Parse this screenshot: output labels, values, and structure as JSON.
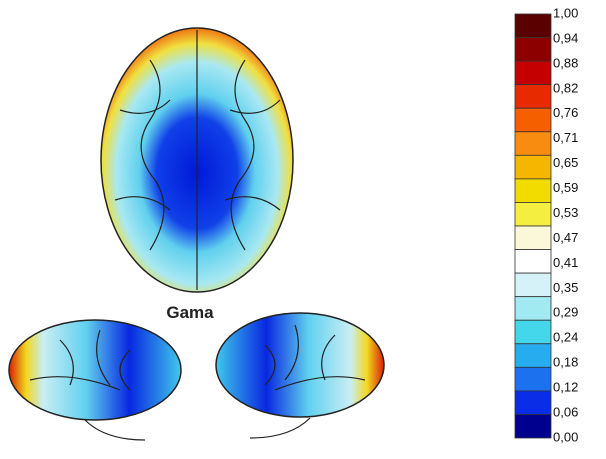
{
  "figure": {
    "label": "Gama"
  },
  "colorbar": {
    "labels": [
      "1,00",
      "0,94",
      "0,88",
      "0,82",
      "0,76",
      "0,71",
      "0,65",
      "0,59",
      "0,53",
      "0,47",
      "0,41",
      "0,35",
      "0,29",
      "0,24",
      "0,18",
      "0,12",
      "0,06",
      "0,00"
    ],
    "colors": [
      "#5a0000",
      "#8c0000",
      "#c40000",
      "#e82a00",
      "#f55f00",
      "#f88c10",
      "#f6b600",
      "#f2dc00",
      "#f4ee40",
      "#faf8d8",
      "#ffffff",
      "#d4f2f8",
      "#a2eaf2",
      "#44d6ea",
      "#28acf0",
      "#1c72ee",
      "#0a2ee8",
      "#00008e"
    ]
  }
}
